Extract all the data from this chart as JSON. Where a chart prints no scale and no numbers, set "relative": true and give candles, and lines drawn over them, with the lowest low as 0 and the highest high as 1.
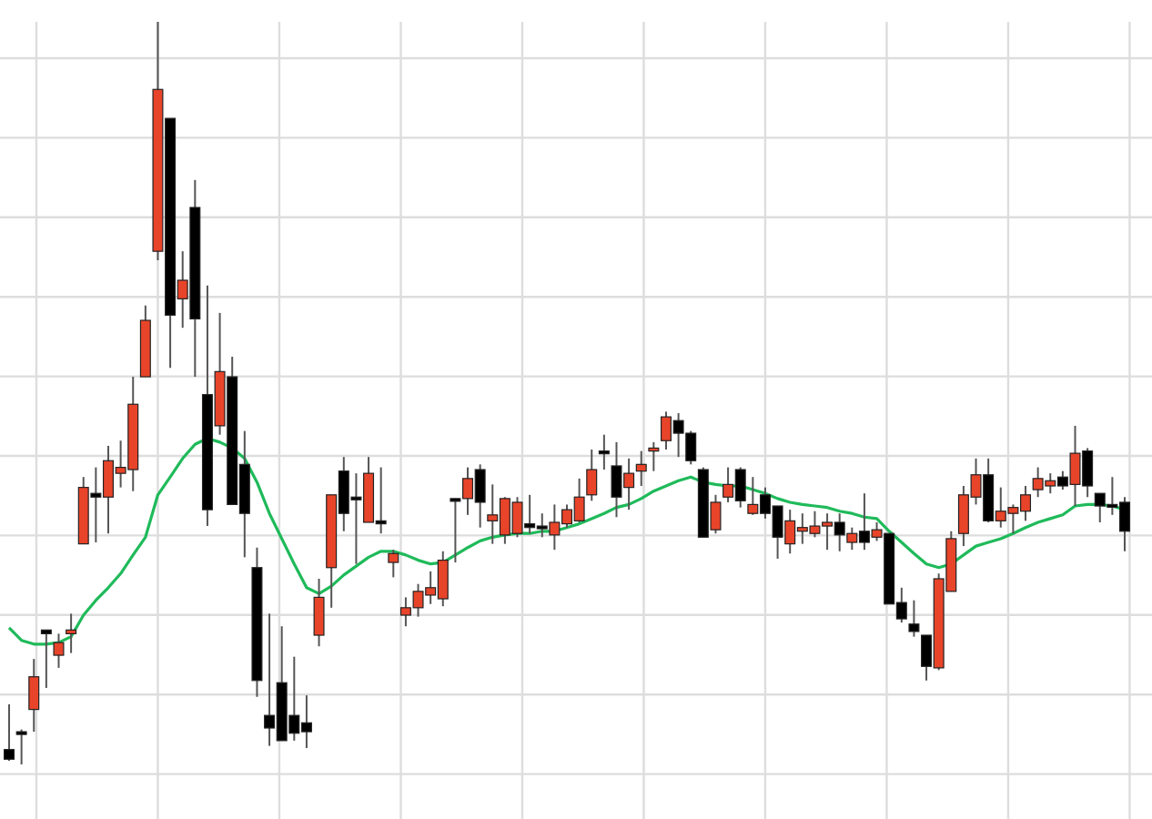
{
  "chart_data": {
    "type": "candlestick",
    "relative": true,
    "grid": true,
    "categories": [
      null,
      null,
      null,
      null,
      null,
      null,
      null,
      null,
      null,
      null,
      null,
      null,
      null,
      null,
      null,
      null,
      null,
      null,
      null,
      null,
      null,
      null,
      null,
      null,
      null,
      null,
      null,
      null,
      null,
      null,
      null,
      null,
      null,
      null,
      null,
      null,
      null,
      null,
      null,
      null,
      null,
      null,
      null,
      null,
      null,
      null,
      null,
      null,
      null,
      null,
      null,
      null,
      null,
      null,
      null,
      null,
      null,
      null,
      null,
      null,
      null,
      null,
      null,
      null,
      null,
      null,
      null,
      null,
      null,
      null,
      null,
      null,
      null,
      null,
      null,
      null,
      null,
      null,
      null,
      null,
      null,
      null,
      null,
      null,
      null,
      null,
      null,
      null,
      null,
      null,
      null
    ],
    "ohlc": [
      [
        0.02,
        0.081,
        0.005,
        0.007
      ],
      [
        0.044,
        0.047,
        0,
        0.042
      ],
      [
        0.074,
        0.142,
        0.044,
        0.118
      ],
      [
        0.181,
        0.181,
        0.103,
        0.176
      ],
      [
        0.147,
        0.176,
        0.13,
        0.164
      ],
      [
        0.176,
        0.203,
        0.15,
        0.181
      ],
      [
        0.297,
        0.387,
        0.297,
        0.373
      ],
      [
        0.365,
        0.4,
        0.299,
        0.36
      ],
      [
        0.36,
        0.429,
        0.311,
        0.409
      ],
      [
        0.392,
        0.436,
        0.373,
        0.4
      ],
      [
        0.397,
        0.522,
        0.368,
        0.485
      ],
      [
        0.522,
        0.618,
        0.522,
        0.598
      ],
      [
        0.691,
        1,
        0.679,
        0.909
      ],
      [
        0.87,
        0.87,
        0.534,
        0.605
      ],
      [
        0.627,
        0.691,
        0.588,
        0.652
      ],
      [
        0.75,
        0.787,
        0.522,
        0.6
      ],
      [
        0.498,
        0.645,
        0.321,
        0.343
      ],
      [
        0.456,
        0.608,
        0.444,
        0.529
      ],
      [
        0.522,
        0.549,
        0.35,
        0.35
      ],
      [
        0.404,
        0.449,
        0.279,
        0.338
      ],
      [
        0.265,
        0.292,
        0.091,
        0.113
      ],
      [
        0.066,
        0.203,
        0.025,
        0.049
      ],
      [
        0.11,
        0.186,
        0.032,
        0.032
      ],
      [
        0.066,
        0.145,
        0.032,
        0.042
      ],
      [
        0.056,
        0.093,
        0.022,
        0.044
      ],
      [
        0.174,
        0.25,
        0.159,
        0.225
      ],
      [
        0.265,
        0.363,
        0.211,
        0.363
      ],
      [
        0.395,
        0.414,
        0.314,
        0.338
      ],
      [
        0.36,
        0.392,
        0.27,
        0.358
      ],
      [
        0.326,
        0.414,
        0.326,
        0.392
      ],
      [
        0.328,
        0.4,
        0.311,
        0.324
      ],
      [
        0.272,
        0.289,
        0.252,
        0.284
      ],
      [
        0.201,
        0.225,
        0.186,
        0.211
      ],
      [
        0.211,
        0.243,
        0.199,
        0.233
      ],
      [
        0.228,
        0.26,
        0.216,
        0.238
      ],
      [
        0.223,
        0.287,
        0.213,
        0.275
      ],
      [
        0.358,
        0.358,
        0.272,
        0.355
      ],
      [
        0.358,
        0.4,
        0.336,
        0.385
      ],
      [
        0.397,
        0.404,
        0.319,
        0.353
      ],
      [
        0.328,
        0.377,
        0.297,
        0.336
      ],
      [
        0.309,
        0.36,
        0.297,
        0.358
      ],
      [
        0.311,
        0.36,
        0.306,
        0.353
      ],
      [
        0.324,
        0.363,
        0.311,
        0.319
      ],
      [
        0.321,
        0.338,
        0.306,
        0.319
      ],
      [
        0.309,
        0.35,
        0.289,
        0.326
      ],
      [
        0.324,
        0.35,
        0.319,
        0.343
      ],
      [
        0.328,
        0.385,
        0.326,
        0.36
      ],
      [
        0.363,
        0.424,
        0.355,
        0.397
      ],
      [
        0.422,
        0.444,
        0.397,
        0.419
      ],
      [
        0.402,
        0.434,
        0.333,
        0.36
      ],
      [
        0.373,
        0.412,
        0.343,
        0.392
      ],
      [
        0.395,
        0.422,
        0.375,
        0.404
      ],
      [
        0.422,
        0.434,
        0.395,
        0.426
      ],
      [
        0.436,
        0.475,
        0.424,
        0.468
      ],
      [
        0.463,
        0.473,
        0.414,
        0.446
      ],
      [
        0.446,
        0.449,
        0.404,
        0.409
      ],
      [
        0.397,
        0.4,
        0.306,
        0.306
      ],
      [
        0.316,
        0.363,
        0.311,
        0.353
      ],
      [
        0.36,
        0.4,
        0.353,
        0.377
      ],
      [
        0.397,
        0.4,
        0.346,
        0.355
      ],
      [
        0.338,
        0.387,
        0.336,
        0.35
      ],
      [
        0.363,
        0.373,
        0.331,
        0.338
      ],
      [
        0.348,
        0.348,
        0.277,
        0.306
      ],
      [
        0.297,
        0.343,
        0.284,
        0.328
      ],
      [
        0.314,
        0.338,
        0.297,
        0.319
      ],
      [
        0.311,
        0.341,
        0.306,
        0.321
      ],
      [
        0.321,
        0.338,
        0.289,
        0.326
      ],
      [
        0.326,
        0.338,
        0.287,
        0.309
      ],
      [
        0.299,
        0.319,
        0.289,
        0.311
      ],
      [
        0.314,
        0.365,
        0.289,
        0.299
      ],
      [
        0.306,
        0.326,
        0.301,
        0.316
      ],
      [
        0.311,
        0.311,
        0.216,
        0.216
      ],
      [
        0.218,
        0.238,
        0.191,
        0.196
      ],
      [
        0.189,
        0.221,
        0.172,
        0.179
      ],
      [
        0.174,
        0.174,
        0.113,
        0.132
      ],
      [
        0.13,
        0.257,
        0.127,
        0.25
      ],
      [
        0.233,
        0.314,
        0.233,
        0.304
      ],
      [
        0.311,
        0.375,
        0.294,
        0.363
      ],
      [
        0.36,
        0.412,
        0.35,
        0.39
      ],
      [
        0.39,
        0.412,
        0.326,
        0.328
      ],
      [
        0.328,
        0.373,
        0.319,
        0.341
      ],
      [
        0.338,
        0.35,
        0.311,
        0.346
      ],
      [
        0.341,
        0.375,
        0.328,
        0.363
      ],
      [
        0.37,
        0.4,
        0.36,
        0.385
      ],
      [
        0.375,
        0.392,
        0.365,
        0.382
      ],
      [
        0.387,
        0.395,
        0.37,
        0.375
      ],
      [
        0.377,
        0.456,
        0.348,
        0.419
      ],
      [
        0.422,
        0.426,
        0.36,
        0.375
      ],
      [
        0.365,
        0.365,
        0.326,
        0.348
      ],
      [
        0.35,
        0.387,
        0.336,
        0.348
      ],
      [
        0.353,
        0.36,
        0.287,
        0.314
      ]
    ],
    "series": [
      {
        "type": "line",
        "color": "#1fba5a",
        "values": [
          0.184,
          0.167,
          0.162,
          0.162,
          0.164,
          0.172,
          0.201,
          0.221,
          0.238,
          0.257,
          0.282,
          0.306,
          0.363,
          0.387,
          0.412,
          0.431,
          0.439,
          0.434,
          0.426,
          0.412,
          0.38,
          0.338,
          0.304,
          0.27,
          0.238,
          0.23,
          0.24,
          0.255,
          0.267,
          0.279,
          0.287,
          0.287,
          0.282,
          0.275,
          0.27,
          0.272,
          0.282,
          0.292,
          0.301,
          0.306,
          0.309,
          0.311,
          0.311,
          0.314,
          0.314,
          0.319,
          0.324,
          0.331,
          0.338,
          0.346,
          0.35,
          0.358,
          0.368,
          0.375,
          0.382,
          0.387,
          0.38,
          0.377,
          0.375,
          0.375,
          0.37,
          0.365,
          0.358,
          0.353,
          0.35,
          0.348,
          0.346,
          0.341,
          0.338,
          0.333,
          0.331,
          0.314,
          0.299,
          0.284,
          0.27,
          0.265,
          0.27,
          0.282,
          0.294,
          0.299,
          0.304,
          0.311,
          0.319,
          0.326,
          0.331,
          0.336,
          0.348,
          0.35,
          0.35,
          0.348,
          0.343
        ]
      }
    ]
  }
}
